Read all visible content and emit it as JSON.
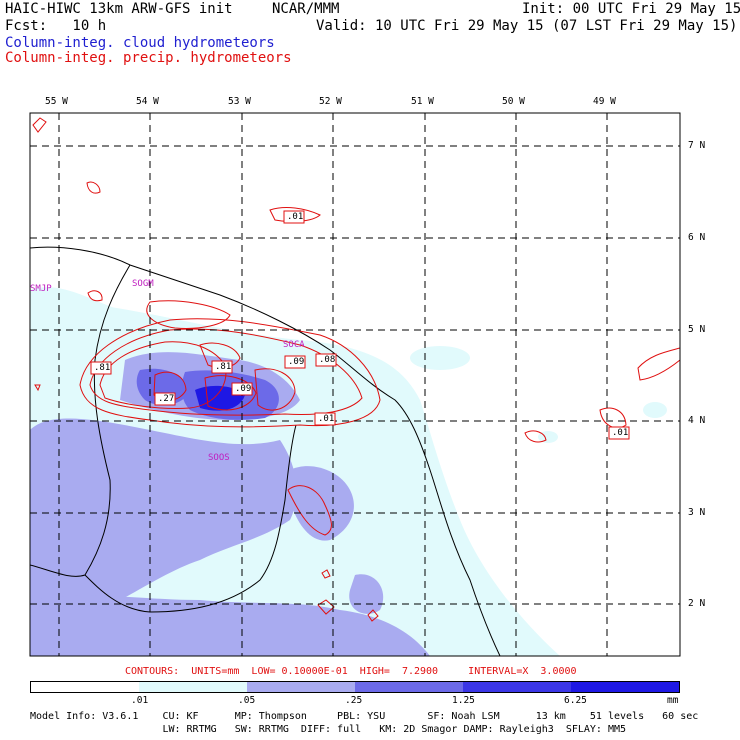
{
  "header": {
    "model": "HAIC-HIWC 13km ARW-GFS init",
    "org": "NCAR/MMM",
    "init": "Init: 00 UTC Fri 29 May 15",
    "fcst": "Fcst:   10 h",
    "valid": "Valid: 10 UTC Fri 29 May 15 (07 LST Fri 29 May 15)",
    "legend_cloud": "Column-integ. cloud hydrometeors",
    "legend_precip": "Column-integ. precip. hydrometeors"
  },
  "map": {
    "lon_labels": [
      "55 W",
      "54 W",
      "53 W",
      "52 W",
      "51 W",
      "50 W",
      "49 W"
    ],
    "lat_labels": [
      "7 N",
      "6 N",
      "5 N",
      "4 N",
      "3 N",
      "2 N"
    ],
    "stations": [
      "SMJP",
      "SOGM",
      "SOCA",
      "SOOS"
    ],
    "contour_labels": [
      ".01",
      ".81",
      ".27",
      ".81",
      ".09",
      ".09",
      ".08",
      ".01",
      ".01"
    ]
  },
  "colors": {
    "cloud_light": "#e1fafc",
    "cloud_mid": "#a9abf0",
    "cloud_dark": "#6c6ae8",
    "cloud_max": "#1e18e4",
    "precip_contour": "#e01010",
    "station_label": "#c020c0"
  },
  "contours_info": "CONTOURS:  UNITS=mm  LOW= 0.10000E-01  HIGH=  7.2900     INTERVAL=X  3.0000",
  "colorbar": {
    "labels": [
      ".01",
      ".05",
      ".25",
      "1.25",
      "6.25"
    ],
    "unit": "mm",
    "colors": [
      "#ffffff",
      "#e1fafc",
      "#a9abf0",
      "#6c6ae8",
      "#3b36e6",
      "#1e18e4"
    ]
  },
  "footer": {
    "line1": "Model Info: V3.6.1    CU: KF      MP: Thompson     PBL: YSU       SF: Noah LSM      13 km    51 levels   60 sec",
    "line2": "                      LW: RRTMG   SW: RRTMG  DIFF: full   KM: 2D Smagor DAMP: Rayleigh3  SFLAY: MM5"
  }
}
